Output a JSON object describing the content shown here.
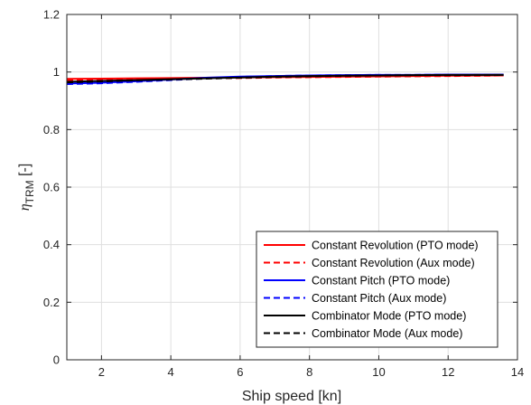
{
  "chart_data": {
    "type": "line",
    "title": "",
    "xlabel": "Ship speed [kn]",
    "ylabel_main": "η",
    "ylabel_sub": "TRM",
    "ylabel_suffix": " [-]",
    "xlim": [
      1,
      14
    ],
    "ylim": [
      0,
      1.2
    ],
    "xticks": [
      2,
      4,
      6,
      8,
      10,
      12,
      14
    ],
    "yticks": [
      0,
      0.2,
      0.4,
      0.6,
      0.8,
      1,
      1.2
    ],
    "grid": true,
    "legend_position": "bottom-right",
    "x": [
      1,
      2,
      3,
      4,
      5,
      6,
      7,
      8,
      9,
      10,
      11,
      12,
      13,
      13.6
    ],
    "series": [
      {
        "name": "Constant Revolution (PTO mode)",
        "color": "#ff0000",
        "dash": "solid",
        "values": [
          0.976,
          0.977,
          0.978,
          0.979,
          0.98,
          0.981,
          0.982,
          0.983,
          0.984,
          0.985,
          0.986,
          0.987,
          0.988,
          0.988
        ]
      },
      {
        "name": "Constant Revolution (Aux mode)",
        "color": "#ff0000",
        "dash": "dashed",
        "values": [
          0.972,
          0.973,
          0.975,
          0.976,
          0.978,
          0.979,
          0.981,
          0.982,
          0.983,
          0.984,
          0.985,
          0.986,
          0.987,
          0.988
        ]
      },
      {
        "name": "Constant Pitch (PTO mode)",
        "color": "#0000ff",
        "dash": "solid",
        "values": [
          0.96,
          0.963,
          0.968,
          0.974,
          0.98,
          0.984,
          0.986,
          0.988,
          0.989,
          0.99,
          0.99,
          0.991,
          0.991,
          0.991
        ]
      },
      {
        "name": "Constant Pitch (Aux mode)",
        "color": "#0000ff",
        "dash": "dashed",
        "values": [
          0.958,
          0.961,
          0.966,
          0.972,
          0.978,
          0.983,
          0.986,
          0.988,
          0.989,
          0.99,
          0.99,
          0.991,
          0.991,
          0.991
        ]
      },
      {
        "name": "Combinator Mode (PTO mode)",
        "color": "#000000",
        "dash": "solid",
        "values": [
          0.966,
          0.969,
          0.972,
          0.975,
          0.978,
          0.981,
          0.984,
          0.986,
          0.987,
          0.988,
          0.989,
          0.99,
          0.99,
          0.99
        ]
      },
      {
        "name": "Combinator Mode (Aux mode)",
        "color": "#000000",
        "dash": "dashed",
        "values": [
          0.964,
          0.967,
          0.971,
          0.974,
          0.977,
          0.98,
          0.983,
          0.985,
          0.987,
          0.988,
          0.989,
          0.989,
          0.99,
          0.99
        ]
      }
    ]
  }
}
